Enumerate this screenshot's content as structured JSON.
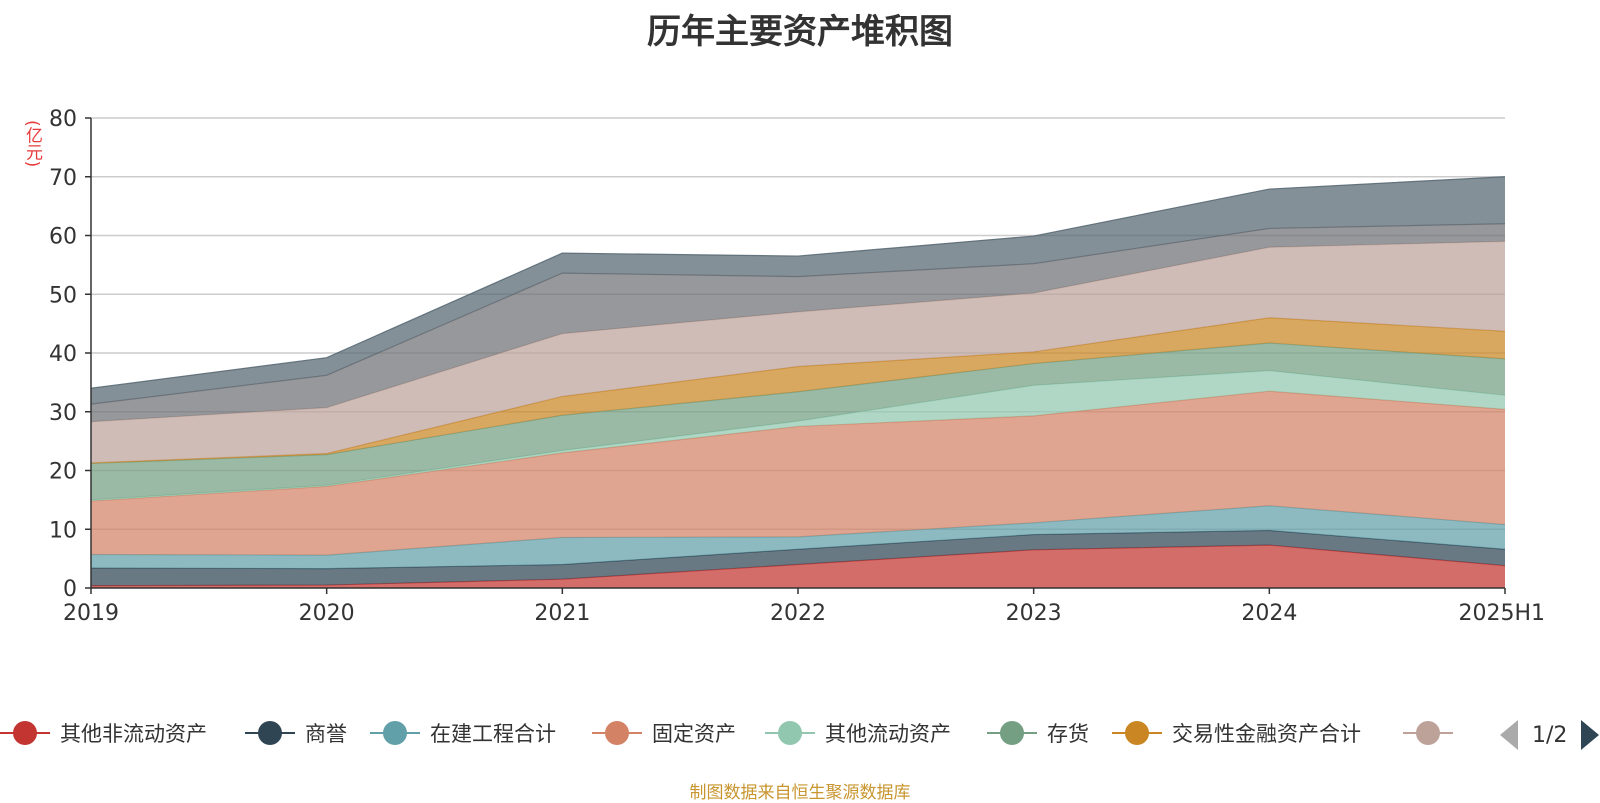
{
  "chart_data": {
    "type": "area",
    "stacked": true,
    "title": "历年主要资产堆积图",
    "y_unit": "(亿元)",
    "categories": [
      "2019",
      "2020",
      "2021",
      "2022",
      "2023",
      "2024",
      "2025H1"
    ],
    "ylim": [
      0,
      80
    ],
    "yticks": [
      0,
      10,
      20,
      30,
      40,
      50,
      60,
      70,
      80
    ],
    "grid": true,
    "legend_position": "bottom",
    "series": [
      {
        "name": "其他非流动资产",
        "color": "#c23531",
        "values": [
          0.4,
          0.5,
          1.5,
          4.0,
          6.5,
          7.3,
          3.8
        ]
      },
      {
        "name": "商誉",
        "color": "#2f4554",
        "values": [
          3.0,
          2.8,
          2.5,
          2.6,
          2.6,
          2.5,
          2.8
        ]
      },
      {
        "name": "在建工程合计",
        "color": "#61a0a8",
        "values": [
          2.3,
          2.3,
          4.6,
          2.1,
          2.0,
          4.2,
          4.2
        ]
      },
      {
        "name": "固定资产",
        "color": "#d48265",
        "values": [
          9.1,
          11.7,
          14.4,
          18.8,
          18.2,
          19.5,
          19.6
        ]
      },
      {
        "name": "其他流动资产",
        "color": "#91c7ae",
        "values": [
          0.2,
          0.2,
          0.4,
          0.9,
          5.2,
          3.5,
          2.4
        ]
      },
      {
        "name": "存货",
        "color": "#749f83",
        "values": [
          6.2,
          5.2,
          6.0,
          5.0,
          3.7,
          4.7,
          6.2
        ]
      },
      {
        "name": "交易性金融资产合计",
        "color": "#ca8622",
        "values": [
          0.1,
          0.2,
          3.2,
          4.3,
          2.0,
          4.3,
          4.7
        ]
      },
      {
        "name": "",
        "color": "#bda29a",
        "values": [
          7.0,
          7.8,
          10.7,
          9.3,
          10.0,
          12.0,
          15.3
        ]
      },
      {
        "name": "",
        "color": "#6e7074",
        "values": [
          3.0,
          5.5,
          10.3,
          6.0,
          5.0,
          3.2,
          3.0
        ]
      },
      {
        "name": "",
        "color": "#546570",
        "values": [
          2.7,
          3.0,
          3.4,
          3.5,
          4.7,
          6.7,
          8.0
        ]
      }
    ]
  },
  "legend": {
    "visible_count": 8,
    "page_indicator": "1/2"
  },
  "footer": {
    "source": "制图数据来自恒生聚源数据库"
  },
  "colors": {
    "axis": "#333333",
    "grid": "#cccccc",
    "title": "#333333",
    "unit": "#e8393a",
    "source": "#c8952f",
    "pager_active": "#2f4554",
    "pager_inactive": "#aaaaaa"
  }
}
